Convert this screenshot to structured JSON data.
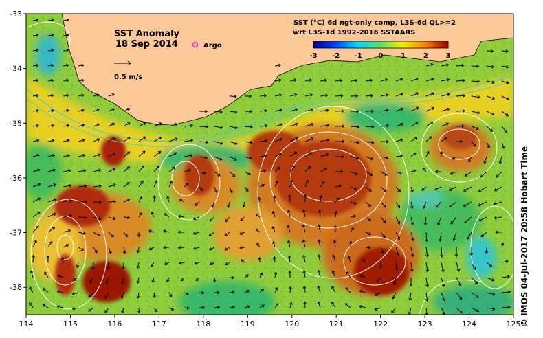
{
  "map": {
    "title": "SST Anomaly",
    "date": "18 Sep 2014",
    "scale_label": "0.5 m/s",
    "argo_label": "Argo",
    "x_ticks": [
      "114",
      "115",
      "116",
      "117",
      "118",
      "119",
      "120",
      "121",
      "122",
      "123",
      "124",
      "125"
    ],
    "y_ticks": [
      "-33",
      "-34",
      "-35",
      "-36",
      "-37",
      "-38"
    ],
    "colors": {
      "land": "#fbc898",
      "ocean_base": "#8fcc3a",
      "warm": "#c85418",
      "hot": "#9a1200",
      "cool": "#38b868",
      "cold": "#36c6cc",
      "argo": "#ff22ff",
      "contour": "#ffffff",
      "shelf": "#40d0d0"
    }
  },
  "legend": {
    "line1": "SST (°C) 6d ngt-only comp, L3S-6d QL>=2",
    "line2": "wrt L3S-1d 1992-2016 SSTAARS",
    "ticks": [
      "-3",
      "-2",
      "-1",
      "0",
      "1",
      "2",
      "3"
    ]
  },
  "credit": "© IMOS 04-Jul-2017 20:58 Hobart Time"
}
